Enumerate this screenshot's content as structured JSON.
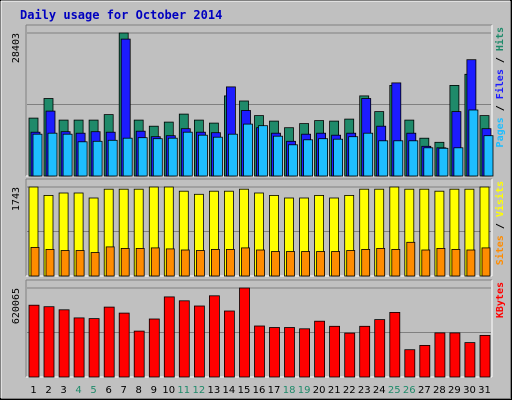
{
  "chart_data": {
    "type": "bar",
    "title": "Daily usage for October 2014",
    "categories": [
      "1",
      "2",
      "3",
      "4",
      "5",
      "6",
      "7",
      "8",
      "9",
      "10",
      "11",
      "12",
      "13",
      "14",
      "15",
      "16",
      "17",
      "18",
      "19",
      "20",
      "21",
      "22",
      "23",
      "24",
      "25",
      "26",
      "27",
      "28",
      "29",
      "30",
      "31"
    ],
    "weekend_days": [
      "4",
      "5",
      "11",
      "12",
      "18",
      "19",
      "25",
      "26"
    ],
    "panels": [
      {
        "id": "hits",
        "label_parts": [
          "Pages",
          "Files",
          "Hits"
        ],
        "max_label": "28403",
        "ymax": 28403,
        "series": [
          {
            "name": "Hits",
            "color": "#1f8a6a",
            "values": [
              11500,
              15400,
              11100,
              11100,
              11100,
              12200,
              28403,
              11100,
              9900,
              10700,
              12300,
              11100,
              10500,
              15900,
              14900,
              12000,
              10900,
              9600,
              10400,
              11000,
              10900,
              11300,
              15900,
              12800,
              18000,
              11100,
              7500,
              6700,
              18000,
              20200,
              12000
            ]
          },
          {
            "name": "Files",
            "color": "#1c1cff",
            "values": [
              8700,
              12900,
              8800,
              8500,
              8800,
              8700,
              27200,
              8900,
              7800,
              8000,
              9400,
              8700,
              8600,
              17700,
              13000,
              9600,
              8500,
              6900,
              8300,
              8500,
              8100,
              8500,
              15400,
              9900,
              18500,
              8500,
              5900,
              5600,
              12800,
              23100,
              9400
            ]
          },
          {
            "name": "Pages",
            "color": "#1ebeff",
            "values": [
              8300,
              8500,
              8300,
              6800,
              6900,
              7100,
              7500,
              7600,
              7400,
              7500,
              8700,
              8100,
              7700,
              8300,
              10300,
              10000,
              7900,
              6200,
              7200,
              7400,
              7300,
              7800,
              8500,
              7000,
              7000,
              7000,
              5600,
              5500,
              5600,
              13100,
              8000
            ]
          }
        ]
      },
      {
        "id": "visits",
        "label_parts": [
          "Sites",
          "Visits"
        ],
        "max_label": "1743",
        "ymax": 1743,
        "series": [
          {
            "name": "Visits",
            "color": "#ffff00",
            "values": [
              1743,
              1578,
              1626,
              1626,
              1527,
              1700,
              1700,
              1700,
              1743,
              1743,
              1660,
              1600,
              1660,
              1660,
              1700,
              1626,
              1578,
              1527,
              1527,
              1578,
              1527,
              1578,
              1700,
              1700,
              1743,
              1700,
              1700,
              1660,
              1700,
              1700,
              1743
            ]
          },
          {
            "name": "Sites",
            "color": "#ff8c00",
            "values": [
              560,
              520,
              500,
              500,
              460,
              570,
              540,
              540,
              550,
              530,
              510,
              500,
              520,
              520,
              550,
              510,
              480,
              480,
              480,
              480,
              480,
              500,
              520,
              540,
              520,
              660,
              510,
              540,
              520,
              510,
              550
            ]
          }
        ]
      },
      {
        "id": "kbytes",
        "label_parts": [
          "KBytes"
        ],
        "max_label": "620065",
        "ymax": 620065,
        "series": [
          {
            "name": "KBytes",
            "color": "#ff0000",
            "values": [
              500000,
              490000,
              468000,
              412000,
              407000,
              487000,
              445000,
              320000,
              404000,
              558000,
              531000,
              495000,
              566000,
              460000,
              620065,
              355000,
              345000,
              345000,
              336000,
              389000,
              353000,
              306000,
              353000,
              400000,
              450000,
              190000,
              220000,
              307000,
              307000,
              240000,
              290000
            ]
          }
        ]
      }
    ],
    "grid": true
  }
}
